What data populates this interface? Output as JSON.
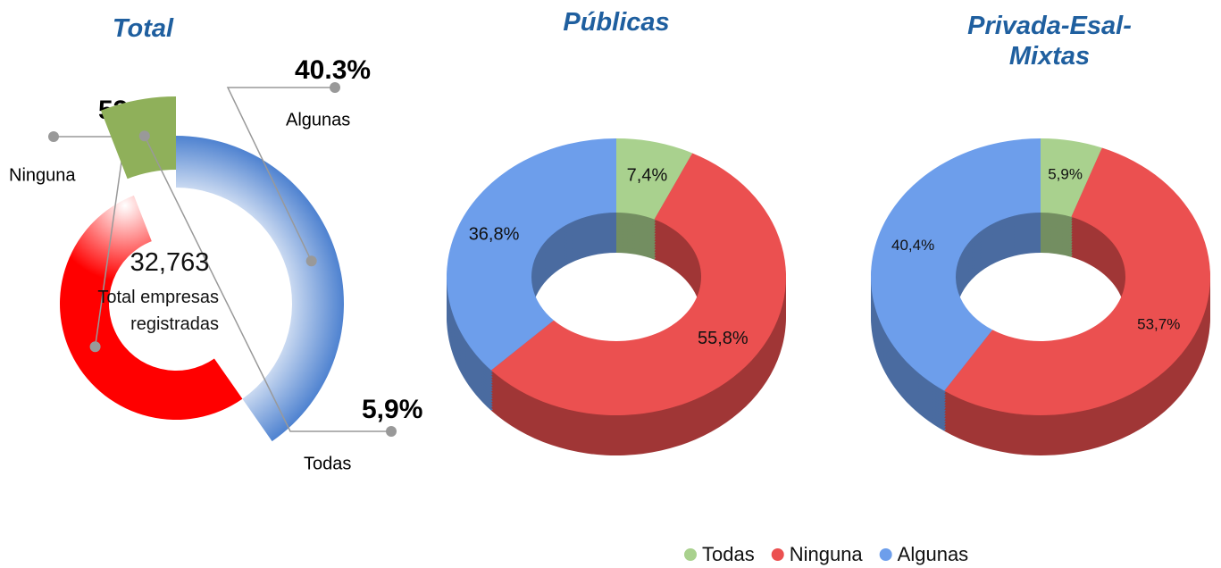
{
  "chart_data": [
    {
      "type": "radial",
      "title": "Total",
      "categories": [
        "Algunas",
        "Ninguna",
        "Todas"
      ],
      "values": [
        40.3,
        53.8,
        5.9
      ],
      "value_labels": [
        "40.3%",
        "53,8%",
        "5,9%"
      ],
      "colors": [
        "#4a7fcf",
        "#ff0000",
        "#8fb05a"
      ],
      "center_value": "32,763",
      "center_label": "Total empresas registradas"
    },
    {
      "type": "donut3d",
      "title": "Públicas",
      "categories": [
        "Todas",
        "Ninguna",
        "Algunas"
      ],
      "values": [
        7.4,
        55.8,
        36.8
      ],
      "value_labels": [
        "7,4%",
        "55,8%",
        "36,8%"
      ],
      "colors": [
        "#a9d18e",
        "#eb5050",
        "#6d9eeb"
      ],
      "legend": "bottom"
    },
    {
      "type": "donut3d",
      "title": "Privada-Esal-Mixtas",
      "categories": [
        "Todas",
        "Ninguna",
        "Algunas"
      ],
      "values": [
        5.9,
        53.7,
        40.4
      ],
      "value_labels": [
        "5,9%",
        "53,7%",
        "40,4%"
      ],
      "colors": [
        "#a9d18e",
        "#eb5050",
        "#6d9eeb"
      ]
    }
  ]
}
